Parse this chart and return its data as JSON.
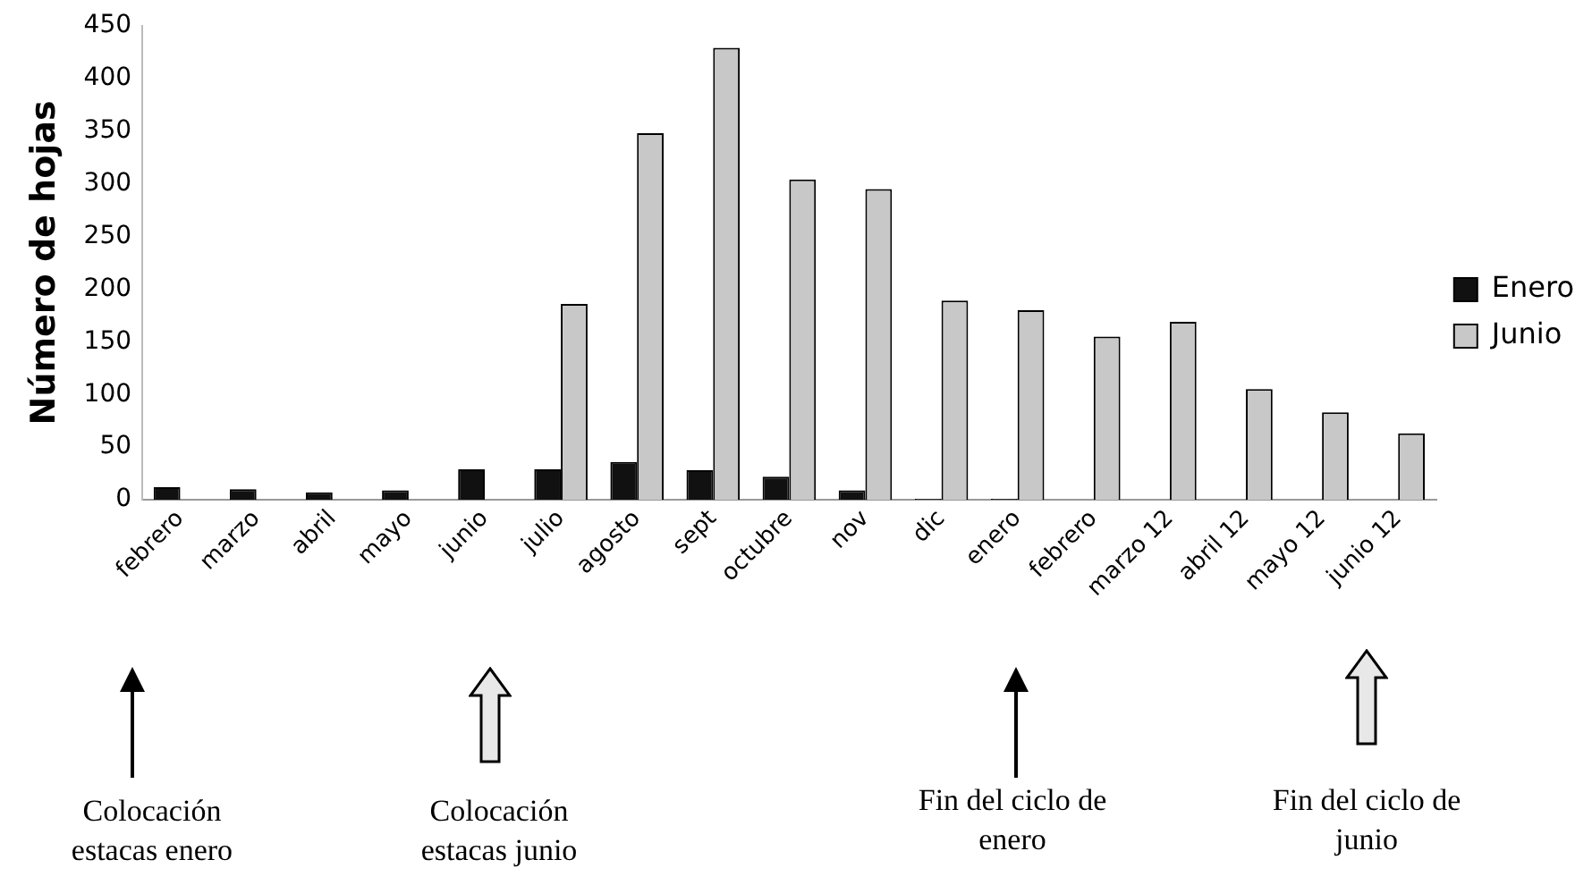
{
  "chart_data": {
    "type": "bar",
    "ylabel": "Número de hojas",
    "categories": [
      "febrero",
      "marzo",
      "abril",
      "mayo",
      "junio",
      "julio",
      "agosto",
      "sept",
      "octubre",
      "nov",
      "dic",
      "enero",
      "febrero",
      "marzo 12",
      "abril 12",
      "mayo 12",
      "junio 12"
    ],
    "series": [
      {
        "name": "Enero",
        "color": "#111111",
        "values": [
          12,
          10,
          7,
          9,
          29,
          29,
          36,
          28,
          22,
          9,
          1,
          1,
          null,
          null,
          null,
          null,
          null
        ]
      },
      {
        "name": "Junio",
        "color": "#c8c8c8",
        "values": [
          null,
          null,
          null,
          null,
          null,
          186,
          348,
          429,
          304,
          295,
          189,
          180,
          155,
          169,
          105,
          83,
          63
        ]
      }
    ],
    "ylim": [
      0,
      450
    ],
    "yticks": [
      0,
      50,
      100,
      150,
      200,
      250,
      300,
      350,
      400,
      450
    ],
    "grid": false,
    "legend": "right",
    "annotations": [
      "Colocación estacas enero",
      "Colocación estacas junio",
      "Fin del ciclo de enero",
      "Fin del ciclo de junio"
    ]
  }
}
